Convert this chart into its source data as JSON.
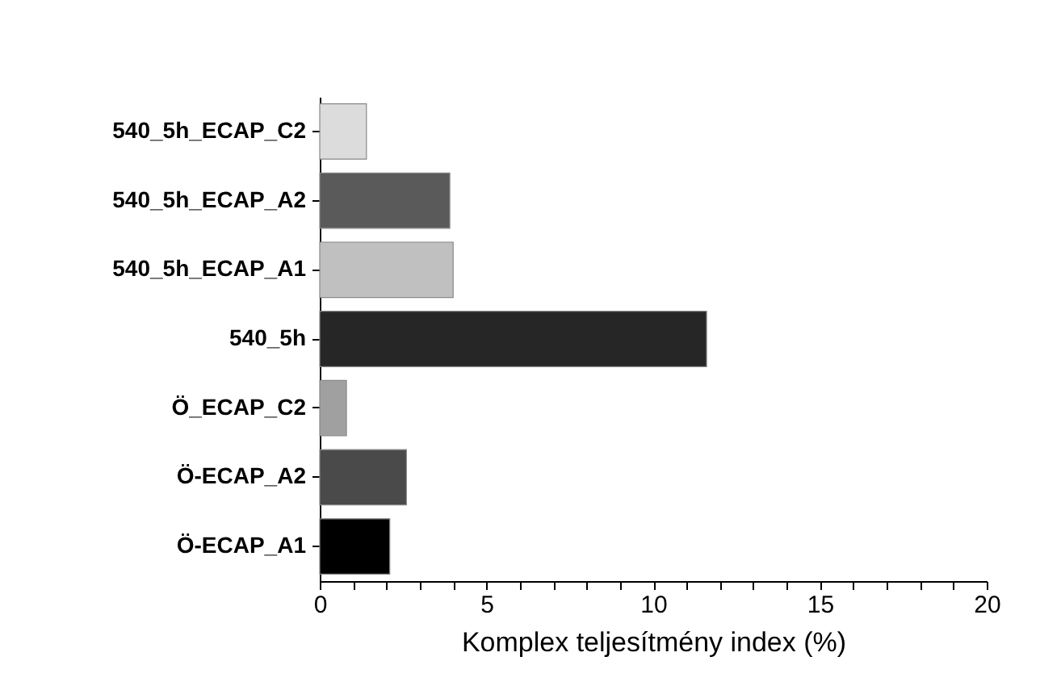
{
  "chart_data": {
    "type": "bar",
    "orientation": "horizontal",
    "xlabel": "Komplex teljesítmény index (%)",
    "categories": [
      "540_5h_ECAP_C2",
      "540_5h_ECAP_A2",
      "540_5h_ECAP_A1",
      "540_5h",
      "Ö_ECAP_C2",
      "Ö-ECAP_A2",
      "Ö-ECAP_A1"
    ],
    "values": [
      1.4,
      3.9,
      4.0,
      11.6,
      0.8,
      2.6,
      2.1
    ],
    "colors": [
      "#dcdcdc",
      "#5a5a5a",
      "#c0c0c0",
      "#262626",
      "#a0a0a0",
      "#4a4a4a",
      "#000000"
    ],
    "xlim": [
      0,
      20
    ],
    "xticks": [
      0,
      {
        "value": 1,
        "label": null
      },
      {
        "value": 2,
        "label": null
      },
      {
        "value": 3,
        "label": null
      },
      {
        "value": 4,
        "label": null
      },
      5,
      {
        "value": 6,
        "label": null
      },
      {
        "value": 7,
        "label": null
      },
      {
        "value": 8,
        "label": null
      },
      {
        "value": 9,
        "label": null
      },
      10,
      {
        "value": 11,
        "label": null
      },
      {
        "value": 12,
        "label": null
      },
      {
        "value": 13,
        "label": null
      },
      {
        "value": 14,
        "label": null
      },
      15,
      {
        "value": 16,
        "label": null
      },
      {
        "value": 17,
        "label": null
      },
      {
        "value": 18,
        "label": null
      },
      {
        "value": 19,
        "label": null
      },
      20
    ],
    "grid": false
  }
}
